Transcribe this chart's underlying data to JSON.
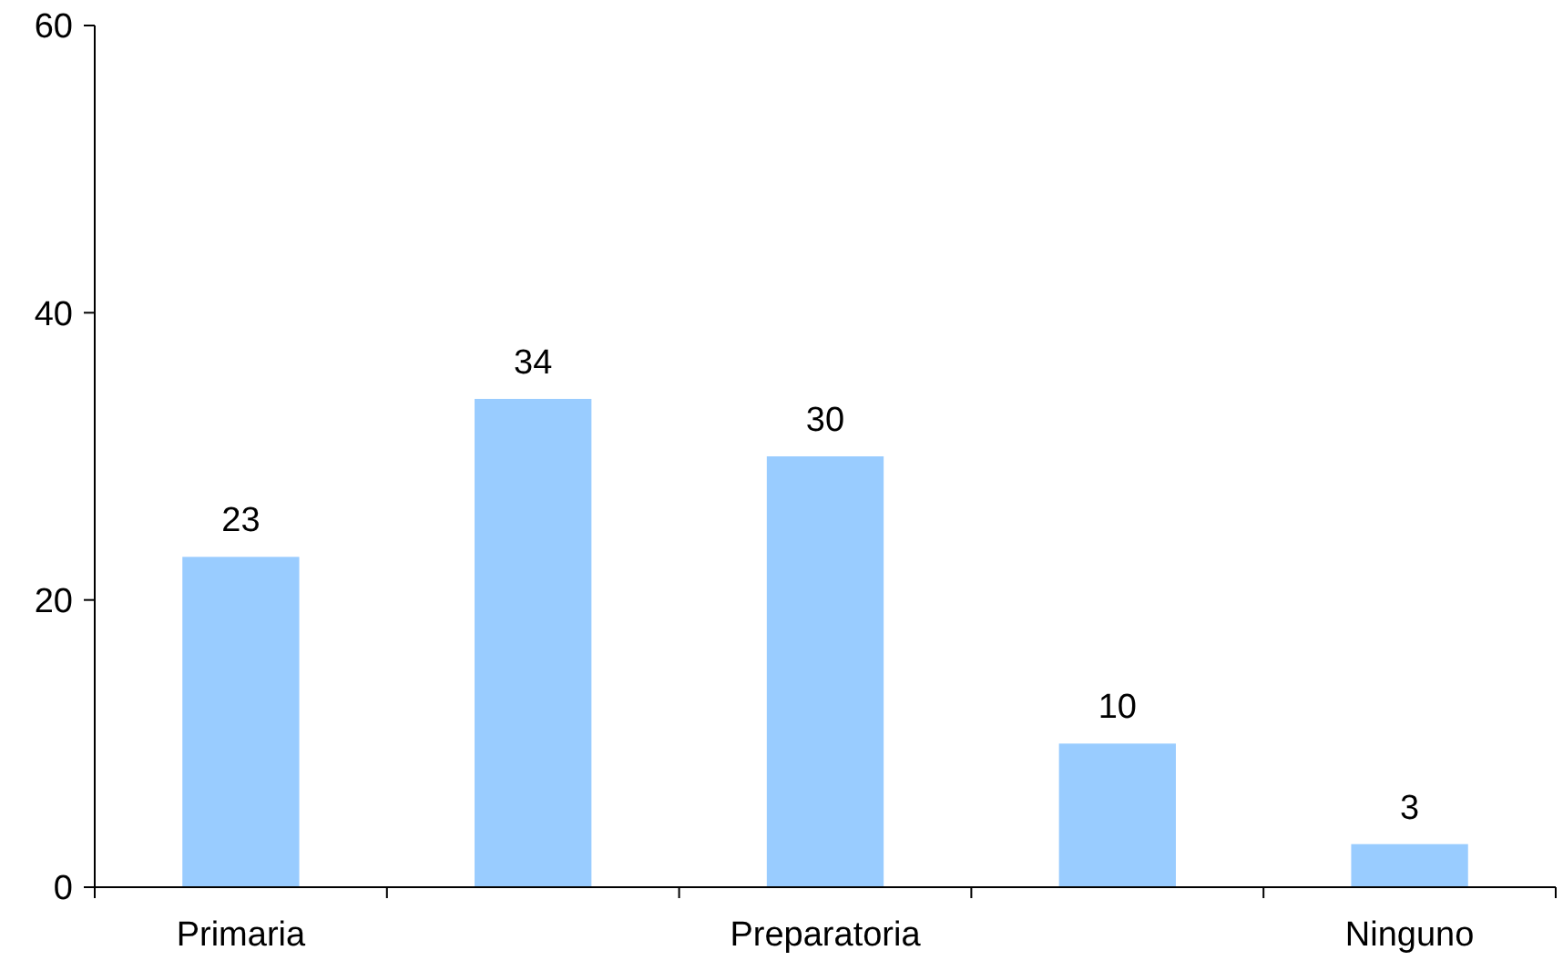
{
  "chart_data": {
    "type": "bar",
    "categories": [
      "Primaria",
      null,
      "Preparatoria",
      null,
      "Ninguno"
    ],
    "values": [
      23,
      34,
      30,
      10,
      3
    ],
    "color": "#99ccff",
    "ylim": [
      0,
      60
    ],
    "yticks": [
      0,
      20,
      40,
      60
    ],
    "data_labels": true,
    "grid": false
  }
}
